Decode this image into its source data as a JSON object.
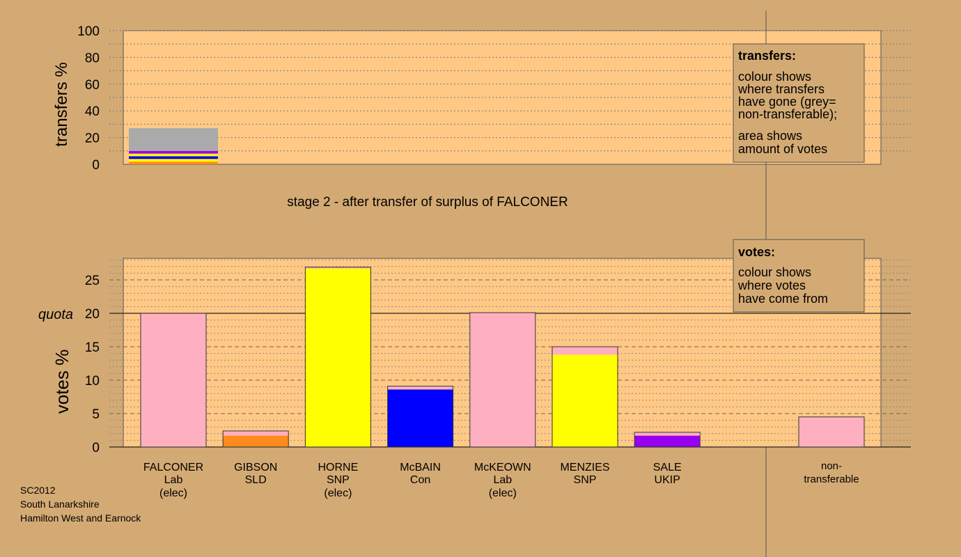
{
  "chart_data": [
    {
      "type": "bar",
      "stacked": true,
      "name": "transfers",
      "ylabel": "transfers %",
      "ylim": [
        0,
        100
      ],
      "yticks": [
        0,
        20,
        40,
        60,
        80,
        100
      ],
      "categories": [
        "FALCONER"
      ],
      "segments": [
        {
          "party": "orange",
          "color": "#ff8c1a",
          "value": 2
        },
        {
          "party": "yellow",
          "color": "#ffff00",
          "value": 2
        },
        {
          "party": "blue",
          "color": "#0000ff",
          "value": 2
        },
        {
          "party": "yellow",
          "color": "#ffff00",
          "value": 2
        },
        {
          "party": "purple",
          "color": "#9900ee",
          "value": 2
        },
        {
          "party": "non-transferable",
          "color": "#aaaaaa",
          "value": 17
        }
      ],
      "legend": {
        "title": "transfers:",
        "lines1": [
          "colour shows",
          "where transfers",
          "have gone (grey=",
          "non-transferable);"
        ],
        "lines2": [
          "area shows",
          "amount of votes"
        ]
      }
    },
    {
      "type": "bar",
      "stacked": true,
      "name": "votes",
      "ylabel": "votes %",
      "ylim": [
        0,
        28
      ],
      "yticks": [
        0,
        5,
        10,
        15,
        20,
        25
      ],
      "quota": 20,
      "quota_label": "quota",
      "candidates": [
        {
          "name": "FALCONER",
          "party": "Lab",
          "note": "(elec)",
          "segments": [
            {
              "color": "#ffb0c0",
              "value": 20
            }
          ]
        },
        {
          "name": "GIBSON",
          "party": "SLD",
          "note": "",
          "segments": [
            {
              "color": "#ff8c1a",
              "value": 1.7
            },
            {
              "color": "#ffb0c0",
              "value": 0.7
            }
          ]
        },
        {
          "name": "HORNE",
          "party": "SNP",
          "note": "(elec)",
          "segments": [
            {
              "color": "#ffff00",
              "value": 26.7
            },
            {
              "color": "#ffb0c0",
              "value": 0.2
            }
          ]
        },
        {
          "name": "McBAIN",
          "party": "Con",
          "note": "",
          "segments": [
            {
              "color": "#0000ff",
              "value": 8.6
            },
            {
              "color": "#ffb0c0",
              "value": 0.5
            }
          ]
        },
        {
          "name": "McKEOWN",
          "party": "Lab",
          "note": "(elec)",
          "segments": [
            {
              "color": "#ffb0c0",
              "value": 20.1
            }
          ]
        },
        {
          "name": "MENZIES",
          "party": "SNP",
          "note": "",
          "segments": [
            {
              "color": "#ffff00",
              "value": 13.8
            },
            {
              "color": "#ffb0c0",
              "value": 1.2
            }
          ]
        },
        {
          "name": "SALE",
          "party": "UKIP",
          "note": "",
          "segments": [
            {
              "color": "#9900ee",
              "value": 1.7
            },
            {
              "color": "#ffb0c0",
              "value": 0.5
            }
          ]
        }
      ],
      "nontransferable": {
        "label1": "non-",
        "label2": "transferable",
        "segments": [
          {
            "color": "#ffb0c0",
            "value": 4.5
          }
        ]
      },
      "legend": {
        "title": "votes:",
        "lines": [
          "colour shows",
          "where votes",
          "have come from"
        ]
      }
    }
  ],
  "stage_title": "stage 2 - after transfer of surplus of FALCONER",
  "footer": {
    "line1": "SC2012",
    "line2": "South Lanarkshire",
    "line3": "Hamilton West and Earnock"
  },
  "colors": {
    "background": "#d4aa74",
    "plot_background": "#ffc985",
    "grey": "#aaaaaa"
  }
}
